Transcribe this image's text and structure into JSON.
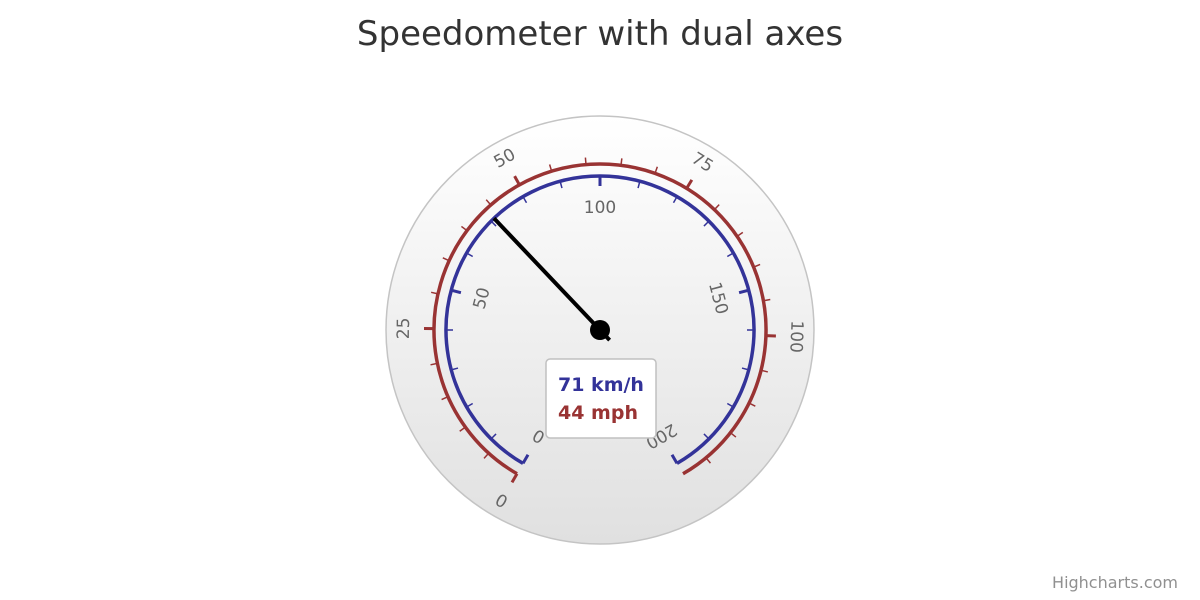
{
  "chart_data": {
    "type": "gauge",
    "title": "Speedometer with dual axes",
    "angle_range_deg": [
      -150,
      150
    ],
    "inner_axis": {
      "unit": "km/h",
      "min": 0,
      "max": 200,
      "major_tick_interval": 50,
      "minor_tick_interval": 10,
      "tick_labels": [
        "0",
        "50",
        "100",
        "150",
        "200"
      ],
      "color": "#333399"
    },
    "outer_axis": {
      "unit": "mph",
      "min": 0,
      "max": 124,
      "major_tick_interval": 25,
      "minor_tick_interval": 5,
      "tick_labels": [
        "0",
        "25",
        "50",
        "75",
        "100"
      ],
      "color": "#993333"
    },
    "series": [
      {
        "value": 71,
        "unit": "km/h"
      }
    ],
    "data_label": {
      "kmh_text": "71 km/h",
      "mph_text": "44 mph"
    }
  },
  "credits": "Highcharts.com"
}
